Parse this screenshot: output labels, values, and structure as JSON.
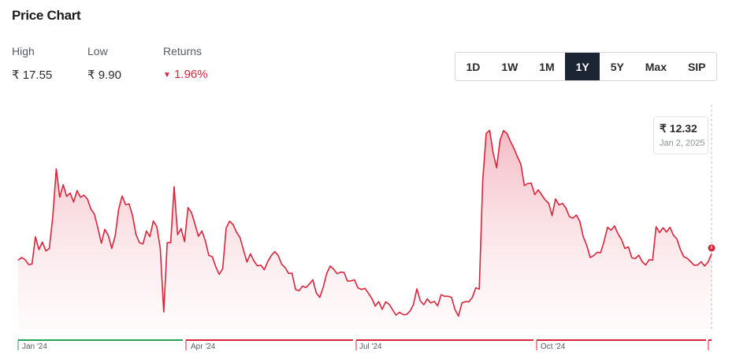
{
  "title": "Price Chart",
  "stats": {
    "high_label": "High",
    "high_value": "₹ 17.55",
    "low_label": "Low",
    "low_value": "₹ 9.90",
    "returns_label": "Returns",
    "returns_value": "1.96%",
    "returns_arrow": "▼"
  },
  "tabs": [
    "1D",
    "1W",
    "1M",
    "1Y",
    "5Y",
    "Max",
    "SIP"
  ],
  "active_tab": "1Y",
  "tooltip": {
    "price": "₹ 12.32",
    "date": "Jan 2, 2025"
  },
  "colors": {
    "line": "#d9243a",
    "fill_top": "#f3b3bd",
    "positive_band": "#21a35a",
    "negative_band": "#d9243a",
    "active_tab_bg": "#1c2533"
  },
  "chart_data": {
    "type": "area",
    "title": "",
    "xlabel": "",
    "ylabel": "",
    "x_ticks": [
      "Jan '24",
      "Apr '24",
      "Jul '24",
      "Oct '24"
    ],
    "quarter_trend": [
      "up",
      "down",
      "down",
      "down",
      "down"
    ],
    "ylim": [
      9.9,
      17.55
    ],
    "grid": false,
    "series": [
      {
        "values": [
          12.08,
          12.18,
          12.1,
          11.92,
          11.93,
          12.96,
          12.48,
          12.76,
          12.43,
          12.52,
          13.72,
          15.52,
          14.45,
          14.92,
          14.48,
          14.61,
          14.27,
          14.7,
          14.45,
          14.53,
          14.38,
          14.0,
          13.81,
          13.29,
          12.72,
          13.24,
          13.02,
          12.52,
          13.0,
          14.0,
          14.5,
          14.17,
          14.2,
          13.76,
          13.04,
          12.74,
          12.69,
          13.18,
          12.97,
          13.56,
          13.34,
          12.52,
          10.13,
          12.74,
          12.74,
          14.85,
          13.04,
          13.27,
          12.78,
          14.06,
          13.87,
          13.44,
          12.98,
          13.18,
          12.81,
          12.26,
          12.21,
          11.83,
          11.55,
          11.76,
          13.29,
          13.55,
          13.42,
          13.13,
          12.93,
          12.46,
          12.01,
          12.32,
          12.05,
          11.87,
          11.89,
          11.72,
          12.03,
          12.25,
          12.4,
          12.26,
          11.93,
          11.8,
          11.58,
          11.59,
          10.98,
          10.93,
          11.1,
          11.05,
          11.18,
          11.34,
          10.85,
          10.68,
          11.06,
          11.58,
          11.86,
          11.74,
          11.57,
          11.63,
          11.62,
          11.29,
          11.3,
          11.34,
          11.04,
          10.98,
          11.02,
          10.84,
          10.64,
          10.35,
          10.52,
          10.23,
          10.51,
          10.42,
          10.21,
          10.01,
          10.12,
          10.03,
          10.03,
          10.16,
          10.4,
          11.0,
          10.55,
          10.4,
          10.62,
          10.47,
          10.53,
          10.36,
          10.78,
          10.72,
          10.72,
          10.68,
          10.22,
          9.97,
          10.47,
          10.52,
          10.51,
          10.68,
          11.04,
          10.99,
          15.08,
          16.86,
          16.97,
          16.12,
          15.56,
          16.6,
          16.96,
          16.85,
          16.55,
          16.29,
          15.98,
          15.69,
          14.89,
          14.97,
          14.98,
          14.55,
          14.73,
          14.54,
          14.35,
          14.23,
          13.76,
          14.39,
          14.16,
          14.22,
          14.04,
          13.72,
          13.66,
          13.78,
          13.54,
          12.96,
          12.64,
          12.18,
          12.25,
          12.38,
          12.36,
          12.79,
          13.32,
          13.21,
          13.37,
          13.08,
          12.86,
          12.52,
          12.58,
          12.17,
          12.14,
          12.27,
          12.02,
          11.9,
          12.1,
          12.08,
          13.34,
          13.12,
          13.3,
          13.14,
          13.32,
          13.02,
          12.88,
          12.48,
          12.21,
          12.15,
          12.02,
          11.89,
          11.9,
          12.02,
          11.86,
          12.01,
          12.32
        ]
      }
    ]
  }
}
